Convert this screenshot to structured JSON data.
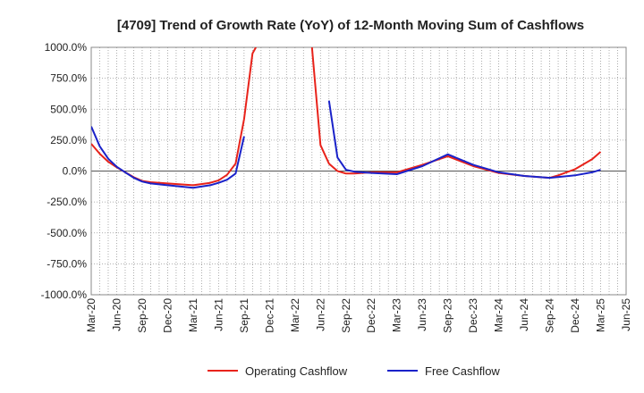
{
  "chart_data": {
    "type": "line",
    "title": "[4709]  Trend of Growth Rate (YoY) of 12-Month Moving Sum of Cashflows",
    "xlabel": "",
    "ylabel": "",
    "ylim": [
      -1000,
      1000
    ],
    "y_ticks": [
      1000,
      750,
      500,
      250,
      0,
      -250,
      -500,
      -750,
      -1000
    ],
    "y_tick_labels": [
      "1000.0%",
      "750.0%",
      "500.0%",
      "250.0%",
      "0.0%",
      "-250.0%",
      "-500.0%",
      "-750.0%",
      "-1000.0%"
    ],
    "x_tick_labels": [
      "Mar-20",
      "Jun-20",
      "Sep-20",
      "Dec-20",
      "Mar-21",
      "Jun-21",
      "Sep-21",
      "Dec-21",
      "Mar-22",
      "Jun-22",
      "Sep-22",
      "Dec-22",
      "Mar-23",
      "Jun-23",
      "Sep-23",
      "Dec-23",
      "Mar-24",
      "Jun-24",
      "Sep-24",
      "Dec-24",
      "Mar-25",
      "Jun-25"
    ],
    "grid": true,
    "legend_position": "bottom",
    "series": [
      {
        "name": "Operating Cashflow",
        "color": "#e8231b",
        "points": [
          [
            "Mar-20",
            220
          ],
          [
            "Apr-20",
            140
          ],
          [
            "May-20",
            75
          ],
          [
            "Jun-20",
            30
          ],
          [
            "Jul-20",
            -10
          ],
          [
            "Aug-20",
            -50
          ],
          [
            "Sep-20",
            -80
          ],
          [
            "Oct-20",
            -90
          ],
          [
            "Dec-20",
            -100
          ],
          [
            "Mar-21",
            -115
          ],
          [
            "May-21",
            -95
          ],
          [
            "Jun-21",
            -75
          ],
          [
            "Jul-21",
            -30
          ],
          [
            "Aug-21",
            60
          ],
          [
            "Sep-21",
            420
          ],
          [
            "Oct-21",
            950
          ],
          [
            "Oct-21b",
            1000
          ],
          null,
          [
            "May-22",
            1000
          ],
          [
            "Jun-22",
            210
          ],
          [
            "Jul-22",
            60
          ],
          [
            "Aug-22",
            0
          ],
          [
            "Sep-22",
            -20
          ],
          [
            "Oct-22",
            -20
          ],
          [
            "Dec-22",
            -10
          ],
          [
            "Mar-23",
            -10
          ],
          [
            "Jun-23",
            50
          ],
          [
            "Sep-23",
            120
          ],
          [
            "Dec-23",
            40
          ],
          [
            "Mar-24",
            -15
          ],
          [
            "Jun-24",
            -40
          ],
          [
            "Sep-24",
            -55
          ],
          [
            "Oct-24",
            -35
          ],
          [
            "Dec-24",
            15
          ],
          [
            "Feb-25",
            95
          ],
          [
            "Mar-25",
            155
          ]
        ]
      },
      {
        "name": "Free Cashflow",
        "color": "#1a22c9",
        "points": [
          [
            "Mar-20",
            360
          ],
          [
            "Apr-20",
            200
          ],
          [
            "May-20",
            100
          ],
          [
            "Jun-20",
            35
          ],
          [
            "Jul-20",
            -10
          ],
          [
            "Aug-20",
            -55
          ],
          [
            "Sep-20",
            -85
          ],
          [
            "Oct-20",
            -100
          ],
          [
            "Dec-20",
            -115
          ],
          [
            "Mar-21",
            -135
          ],
          [
            "May-21",
            -115
          ],
          [
            "Jun-21",
            -95
          ],
          [
            "Jul-21",
            -70
          ],
          [
            "Aug-21",
            -20
          ],
          [
            "Sep-21",
            280
          ],
          null,
          [
            "Jul-22",
            570
          ],
          [
            "Aug-22",
            110
          ],
          [
            "Sep-22",
            10
          ],
          [
            "Oct-22",
            -5
          ],
          [
            "Dec-22",
            -15
          ],
          [
            "Mar-23",
            -25
          ],
          [
            "Jun-23",
            40
          ],
          [
            "Sep-23",
            135
          ],
          [
            "Dec-23",
            50
          ],
          [
            "Mar-24",
            -10
          ],
          [
            "Jun-24",
            -40
          ],
          [
            "Sep-24",
            -55
          ],
          [
            "Dec-24",
            -35
          ],
          [
            "Feb-25",
            -10
          ],
          [
            "Mar-25",
            10
          ]
        ]
      }
    ]
  }
}
